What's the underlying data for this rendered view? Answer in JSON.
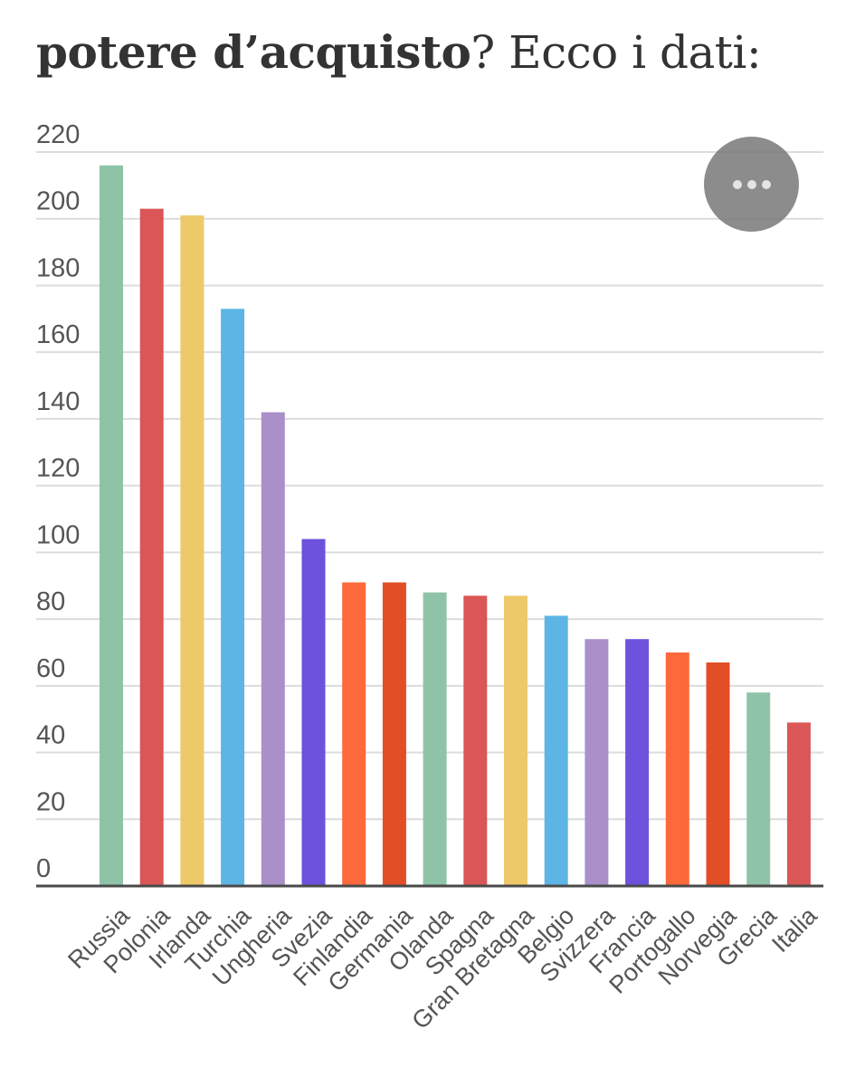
{
  "header": {
    "title_bold": "potere d’acquisto",
    "title_rest": "? Ecco i dati:"
  },
  "menu": {
    "icon": "more-horizontal-icon"
  },
  "chart_data": {
    "type": "bar",
    "categories": [
      "Russia",
      "Polonia",
      "Irlanda",
      "Turchia",
      "Ungheria",
      "Svezia",
      "Finlandia",
      "Germania",
      "Olanda",
      "Spagna",
      "Gran Bretagna",
      "Belgio",
      "Svizzera",
      "Francia",
      "Portogallo",
      "Norvegia",
      "Grecia",
      "Italia"
    ],
    "values": [
      216,
      203,
      201,
      173,
      142,
      104,
      91,
      91,
      88,
      87,
      87,
      81,
      74,
      74,
      70,
      67,
      58,
      49
    ],
    "colors": [
      "#8fc3a8",
      "#db5656",
      "#eec96a",
      "#5db5e6",
      "#ab8fc9",
      "#6c52dd",
      "#fd693a",
      "#e24f27",
      "#8fc3a8",
      "#db5656",
      "#eec96a",
      "#5db5e6",
      "#ab8fc9",
      "#6c52dd",
      "#fd693a",
      "#e24f27",
      "#8fc3a8",
      "#db5656"
    ],
    "yticks": [
      0,
      20,
      40,
      60,
      80,
      100,
      120,
      140,
      160,
      180,
      200,
      220
    ],
    "ylim": [
      0,
      220
    ],
    "grid": true,
    "xlabel": "",
    "ylabel": ""
  }
}
